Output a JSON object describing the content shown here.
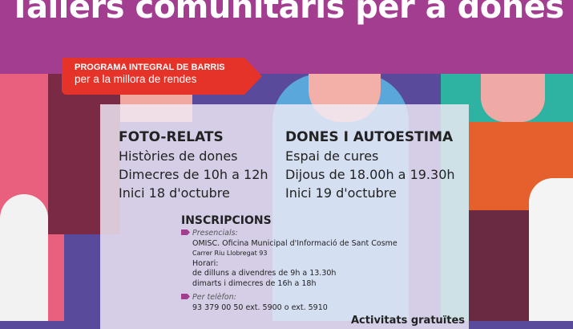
{
  "header": {
    "title": "Tallers comunitaris per a dones",
    "color": "#a23d8f"
  },
  "banner": {
    "line1": "PROGRAMA INTEGRAL DE BARRIS",
    "line2": "per a la millora de rendes",
    "color": "#e6332a"
  },
  "workshops": [
    {
      "title": "FOTO-RELATS",
      "subtitle": "Històries de dones",
      "schedule": "Dimecres de 10h a 12h",
      "start": "Inici 18 d'octubre"
    },
    {
      "title": "DONES I AUTOESTIMA",
      "subtitle": "Espai de cures",
      "schedule": "Dijous de 18.00h a 19.30h",
      "start": "Inici 19 d'octubre"
    }
  ],
  "registration": {
    "title": "INSCRIPCIONS",
    "in_person_label": "Presencials:",
    "office": "OMISC. Oficina Municipal d'Informació de Sant Cosme",
    "address": "Carrer Riu Llobregat 93",
    "hours_label": "Horari:",
    "hours_1": "de dilluns a divendres de 9h a 13.30h",
    "hours_2": "dimarts i dimecres de 16h a 18h",
    "phone_label": "Per telèfon:",
    "phone": "93 379 00 50 ext. 5900 o ext. 5910"
  },
  "footer_note": "Activitats gratuïtes"
}
